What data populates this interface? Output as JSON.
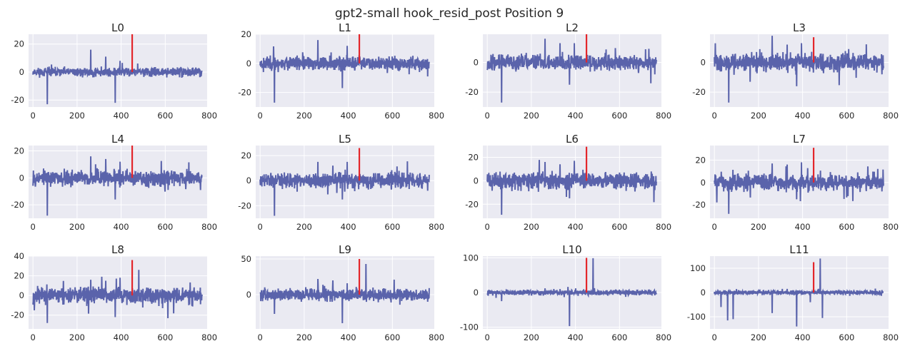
{
  "chart_data": {
    "type": "line",
    "title": "gpt2-small hook_resid_post Position 9",
    "x_count": 768,
    "xlim": [
      -20,
      790
    ],
    "xticks": [
      0,
      200,
      400,
      600,
      800
    ],
    "marker_x": 450,
    "colors": {
      "series": "#5a63ab",
      "marker": "#e3262b",
      "background": "#eaeaf2",
      "grid": "#ffffff"
    },
    "grid": true,
    "panels": [
      {
        "title": "L0",
        "ylim": [
          -25,
          27
        ],
        "yticks": [
          -20,
          0,
          20
        ],
        "marker": [
          0,
          27
        ],
        "noise": 1.5,
        "seed": 11,
        "spikes": [
          [
            65,
            -23
          ],
          [
            262,
            16
          ],
          [
            373,
            -22
          ],
          [
            330,
            11
          ],
          [
            395,
            8
          ]
        ]
      },
      {
        "title": "L1",
        "ylim": [
          -30,
          20
        ],
        "yticks": [
          -20,
          0,
          20
        ],
        "marker": [
          0,
          20
        ],
        "noise": 2.2,
        "seed": 23,
        "spikes": [
          [
            65,
            -27
          ],
          [
            262,
            16
          ],
          [
            373,
            -17
          ],
          [
            395,
            12
          ],
          [
            760,
            -9
          ]
        ]
      },
      {
        "title": "L2",
        "ylim": [
          -30,
          19
        ],
        "yticks": [
          -20,
          0
        ],
        "marker": [
          0,
          19
        ],
        "noise": 2.5,
        "seed": 37,
        "spikes": [
          [
            65,
            -27
          ],
          [
            262,
            16
          ],
          [
            373,
            -15
          ],
          [
            330,
            13
          ],
          [
            395,
            13
          ],
          [
            760,
            -8
          ]
        ]
      },
      {
        "title": "L3",
        "ylim": [
          -30,
          19
        ],
        "yticks": [
          -20,
          0
        ],
        "marker": [
          0,
          17
        ],
        "noise": 2.8,
        "seed": 41,
        "spikes": [
          [
            65,
            -27
          ],
          [
            262,
            18
          ],
          [
            373,
            -16
          ],
          [
            330,
            12
          ],
          [
            395,
            13
          ],
          [
            760,
            -8
          ]
        ]
      },
      {
        "title": "L4",
        "ylim": [
          -30,
          24
        ],
        "yticks": [
          -20,
          0,
          20
        ],
        "marker": [
          0,
          24
        ],
        "noise": 2.8,
        "seed": 53,
        "spikes": [
          [
            65,
            -28
          ],
          [
            262,
            16
          ],
          [
            373,
            -16
          ],
          [
            330,
            14
          ],
          [
            395,
            12
          ],
          [
            760,
            -9
          ]
        ]
      },
      {
        "title": "L5",
        "ylim": [
          -30,
          28
        ],
        "yticks": [
          -20,
          0,
          20
        ],
        "marker": [
          0,
          26
        ],
        "noise": 3.0,
        "seed": 61,
        "spikes": [
          [
            65,
            -28
          ],
          [
            262,
            15
          ],
          [
            373,
            -15
          ],
          [
            330,
            12
          ],
          [
            395,
            15
          ],
          [
            760,
            -8
          ]
        ]
      },
      {
        "title": "L6",
        "ylim": [
          -32,
          30
        ],
        "yticks": [
          -20,
          0,
          20
        ],
        "marker": [
          0,
          29
        ],
        "noise": 3.2,
        "seed": 71,
        "spikes": [
          [
            65,
            -29
          ],
          [
            262,
            16
          ],
          [
            373,
            -15
          ],
          [
            330,
            14
          ],
          [
            395,
            17
          ],
          [
            760,
            -8
          ]
        ]
      },
      {
        "title": "L7",
        "ylim": [
          -32,
          33
        ],
        "yticks": [
          -20,
          0,
          20
        ],
        "marker": [
          0,
          31
        ],
        "noise": 3.5,
        "seed": 83,
        "spikes": [
          [
            65,
            -28
          ],
          [
            262,
            17
          ],
          [
            373,
            -15
          ],
          [
            330,
            16
          ],
          [
            395,
            18
          ],
          [
            760,
            -8
          ]
        ]
      },
      {
        "title": "L8",
        "ylim": [
          -34,
          40
        ],
        "yticks": [
          -20,
          0,
          20,
          40
        ],
        "marker": [
          0,
          36
        ],
        "noise": 4.0,
        "seed": 97,
        "spikes": [
          [
            65,
            -28
          ],
          [
            262,
            16
          ],
          [
            373,
            -22
          ],
          [
            330,
            15
          ],
          [
            395,
            18
          ],
          [
            480,
            26
          ],
          [
            760,
            -9
          ]
        ]
      },
      {
        "title": "L9",
        "ylim": [
          -48,
          54
        ],
        "yticks": [
          0,
          50
        ],
        "marker": [
          0,
          50
        ],
        "noise": 4.0,
        "seed": 101,
        "spikes": [
          [
            65,
            -27
          ],
          [
            262,
            22
          ],
          [
            373,
            -40
          ],
          [
            330,
            20
          ],
          [
            395,
            16
          ],
          [
            480,
            43
          ],
          [
            760,
            -10
          ]
        ]
      },
      {
        "title": "L10",
        "ylim": [
          -105,
          105
        ],
        "yticks": [
          -100,
          0,
          100
        ],
        "marker": [
          0,
          100
        ],
        "noise": 3.5,
        "seed": 113,
        "spikes": [
          [
            65,
            -25
          ],
          [
            262,
            12
          ],
          [
            373,
            -97
          ],
          [
            480,
            99
          ],
          [
            330,
            10
          ],
          [
            760,
            -8
          ]
        ]
      },
      {
        "title": "L11",
        "ylim": [
          -150,
          150
        ],
        "yticks": [
          -100,
          0,
          100
        ],
        "marker": [
          0,
          125
        ],
        "noise": 4.0,
        "seed": 127,
        "spikes": [
          [
            30,
            -60
          ],
          [
            60,
            -115
          ],
          [
            85,
            -110
          ],
          [
            262,
            -85
          ],
          [
            373,
            -140
          ],
          [
            435,
            -40
          ],
          [
            480,
            140
          ],
          [
            490,
            -105
          ],
          [
            330,
            15
          ],
          [
            760,
            10
          ]
        ]
      }
    ]
  }
}
